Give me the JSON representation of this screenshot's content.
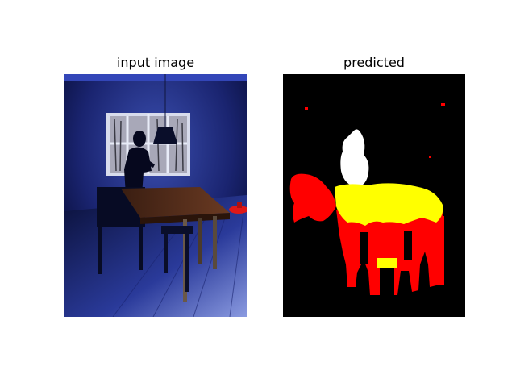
{
  "figure": {
    "left_title": "input image",
    "right_title": "predicted"
  },
  "colors": {
    "background": "#ffffff",
    "mask_background": "#000000",
    "class_person": "#ffffff",
    "class_table": "#ffff00",
    "class_chair": "#ff0000"
  }
}
